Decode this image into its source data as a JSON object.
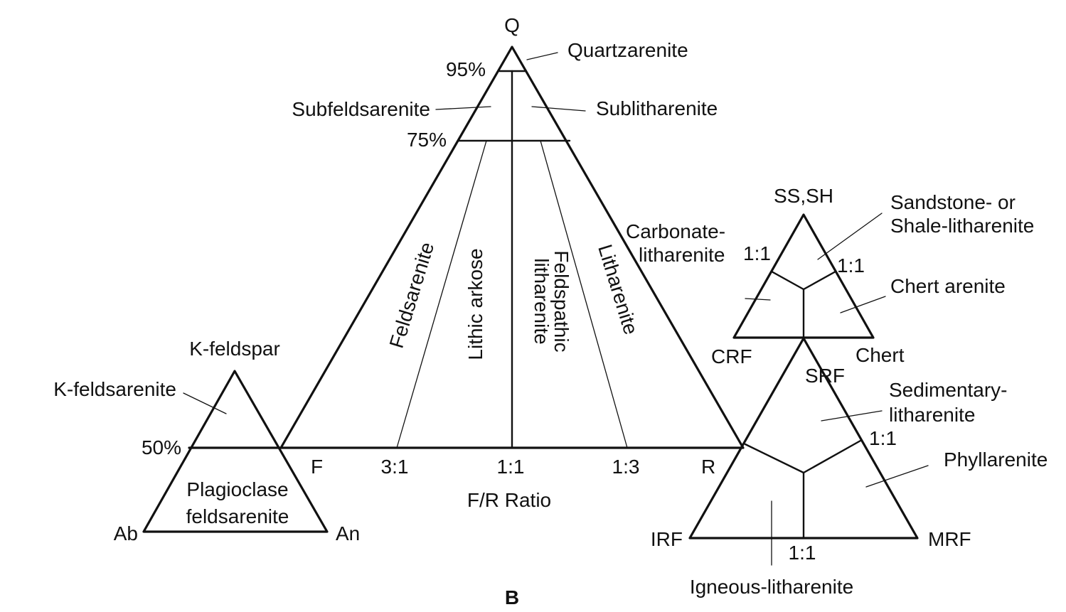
{
  "main": {
    "apex_q": "Q",
    "corner_f": "F",
    "corner_r": "R",
    "pct_95": "95%",
    "pct_75": "75%",
    "ratio_3_1": "3:1",
    "ratio_1_1": "1:1",
    "ratio_1_3": "1:3",
    "ratio_title": "F/R Ratio",
    "quartzarenite": "Quartzarenite",
    "subfeldsarenite": "Subfeldsarenite",
    "sublitharenite": "Sublitharenite",
    "feldsarenite": "Feldsarenite",
    "lithic_arkose": "Lithic arkose",
    "feldspathic_1": "Feldspathic",
    "feldspathic_2": "litharenite",
    "litharenite": "Litharenite",
    "panel_label": "B"
  },
  "feldspar": {
    "apex": "K-feldspar",
    "k_feldsarenite": "K-feldsarenite",
    "pct_50": "50%",
    "plagioclase_1": "Plagioclase",
    "plagioclase_2": "feldsarenite",
    "corner_ab": "Ab",
    "corner_an": "An"
  },
  "upper_rock": {
    "apex": "SS,SH",
    "sandstone_1": "Sandstone- or",
    "sandstone_2": "Shale-litharenite",
    "carbonate_1": "Carbonate-",
    "carbonate_2": "litharenite",
    "ratio_left": "1:1",
    "ratio_right": "1:1",
    "chert_arenite": "Chert arenite",
    "corner_crf": "CRF",
    "corner_chert": "Chert"
  },
  "lower_rock": {
    "apex": "SRF",
    "sedimentary_1": "Sedimentary-",
    "sedimentary_2": "litharenite",
    "ratio_right": "1:1",
    "phyllarenite": "Phyllarenite",
    "corner_irf": "IRF",
    "corner_mrf": "MRF",
    "ratio_bottom": "1:1",
    "igneous": "Igneous-litharenite"
  }
}
